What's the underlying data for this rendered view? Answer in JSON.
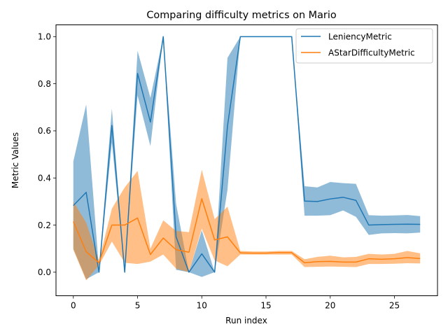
{
  "chart_data": {
    "type": "line",
    "title": "Comparing difficulty metrics on Mario",
    "xlabel": "Run index",
    "ylabel": "Metric Values",
    "xlim": [
      -1.35,
      28.35
    ],
    "ylim": [
      -0.1,
      1.05
    ],
    "xticks": [
      0,
      5,
      10,
      15,
      20,
      25
    ],
    "yticks": [
      0.0,
      0.2,
      0.4,
      0.6,
      0.8,
      1.0
    ],
    "grid": false,
    "legend_position": "top-right",
    "x": [
      0,
      1,
      2,
      3,
      4,
      5,
      6,
      7,
      8,
      9,
      10,
      11,
      12,
      13,
      14,
      15,
      16,
      17,
      18,
      19,
      20,
      21,
      22,
      23,
      24,
      25,
      26,
      27
    ],
    "series": [
      {
        "name": "LeniencyMetric",
        "color": "#1f77b4",
        "values": [
          0.283,
          0.339,
          0.0,
          0.623,
          0.0,
          0.844,
          0.637,
          1.0,
          0.15,
          0.0,
          0.078,
          0.0,
          0.62,
          1.0,
          1.0,
          1.0,
          1.0,
          1.0,
          0.302,
          0.3,
          0.311,
          0.318,
          0.305,
          0.2,
          0.202,
          0.203,
          0.204,
          0.203
        ],
        "lower": [
          0.1,
          -0.03,
          0.0,
          0.55,
          0.0,
          0.75,
          0.535,
          1.0,
          0.01,
          0.0,
          -0.02,
          0.0,
          0.35,
          1.0,
          1.0,
          1.0,
          1.0,
          1.0,
          0.24,
          0.24,
          0.242,
          0.262,
          0.235,
          0.158,
          0.165,
          0.166,
          0.165,
          0.168
        ],
        "upper": [
          0.47,
          0.712,
          0.01,
          0.695,
          0.0,
          0.94,
          0.74,
          1.0,
          0.29,
          0.0,
          0.178,
          0.0,
          0.91,
          1.0,
          1.0,
          1.0,
          1.0,
          1.0,
          0.365,
          0.36,
          0.383,
          0.378,
          0.375,
          0.242,
          0.24,
          0.241,
          0.243,
          0.238
        ]
      },
      {
        "name": "AStarDifficultyMetric",
        "color": "#ff7f0e",
        "values": [
          0.215,
          0.087,
          0.04,
          0.2,
          0.2,
          0.23,
          0.075,
          0.145,
          0.095,
          0.085,
          0.312,
          0.137,
          0.15,
          0.082,
          0.081,
          0.081,
          0.083,
          0.083,
          0.04,
          0.045,
          0.046,
          0.043,
          0.043,
          0.057,
          0.055,
          0.057,
          0.062,
          0.058
        ],
        "lower": [
          0.095,
          -0.035,
          0.03,
          0.13,
          0.04,
          0.035,
          0.045,
          0.075,
          0.015,
          0.0,
          0.185,
          0.05,
          0.025,
          0.075,
          0.075,
          0.075,
          0.075,
          0.075,
          0.022,
          0.023,
          0.024,
          0.023,
          0.022,
          0.035,
          0.035,
          0.036,
          0.038,
          0.037
        ],
        "upper": [
          0.3,
          0.21,
          0.05,
          0.27,
          0.36,
          0.43,
          0.1,
          0.22,
          0.175,
          0.17,
          0.435,
          0.225,
          0.278,
          0.09,
          0.088,
          0.088,
          0.09,
          0.09,
          0.055,
          0.065,
          0.07,
          0.063,
          0.065,
          0.078,
          0.075,
          0.078,
          0.09,
          0.08
        ]
      }
    ]
  }
}
